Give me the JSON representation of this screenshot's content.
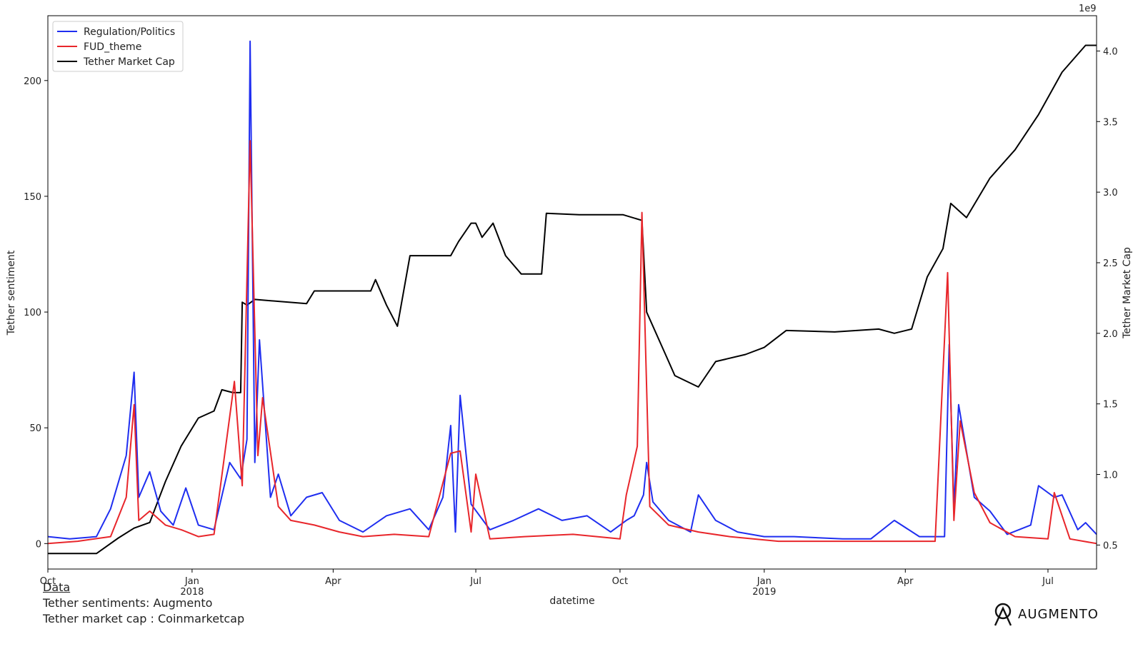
{
  "chart_data": {
    "type": "line",
    "xlabel": "datetime",
    "ylabel_left": "Tether sentiment",
    "ylabel_right": "Tether Market Cap",
    "right_axis_multiplier": "1e9",
    "x_range": [
      "2017-10-01",
      "2019-08-01"
    ],
    "ylim_left": [
      -11,
      228
    ],
    "ylim_right": [
      0.33,
      4.25
    ],
    "x_ticks": [
      {
        "date": "2017-10-01",
        "label": "Oct",
        "sub": ""
      },
      {
        "date": "2018-01-01",
        "label": "Jan",
        "sub": "2018"
      },
      {
        "date": "2018-04-01",
        "label": "Apr",
        "sub": ""
      },
      {
        "date": "2018-07-01",
        "label": "Jul",
        "sub": ""
      },
      {
        "date": "2018-10-01",
        "label": "Oct",
        "sub": ""
      },
      {
        "date": "2019-01-01",
        "label": "Jan",
        "sub": "2019"
      },
      {
        "date": "2019-04-01",
        "label": "Apr",
        "sub": ""
      },
      {
        "date": "2019-07-01",
        "label": "Jul",
        "sub": ""
      }
    ],
    "y_ticks_left": [
      0,
      50,
      100,
      150,
      200
    ],
    "y_ticks_right": [
      "0.5",
      "1.0",
      "1.5",
      "2.0",
      "2.5",
      "3.0",
      "3.5",
      "4.0"
    ],
    "legend_position": "top-left",
    "series": [
      {
        "name": "Regulation/Politics",
        "color": "#1f2ef0",
        "axis": "left",
        "points": [
          [
            "2017-10-01",
            3
          ],
          [
            "2017-10-15",
            2
          ],
          [
            "2017-11-01",
            3
          ],
          [
            "2017-11-10",
            15
          ],
          [
            "2017-11-20",
            38
          ],
          [
            "2017-11-25",
            74
          ],
          [
            "2017-11-28",
            20
          ],
          [
            "2017-12-05",
            31
          ],
          [
            "2017-12-12",
            14
          ],
          [
            "2017-12-20",
            8
          ],
          [
            "2017-12-28",
            24
          ],
          [
            "2018-01-05",
            8
          ],
          [
            "2018-01-15",
            6
          ],
          [
            "2018-01-25",
            35
          ],
          [
            "2018-02-01",
            28
          ],
          [
            "2018-02-05",
            45
          ],
          [
            "2018-02-07",
            217
          ],
          [
            "2018-02-10",
            35
          ],
          [
            "2018-02-13",
            88
          ],
          [
            "2018-02-20",
            20
          ],
          [
            "2018-02-25",
            30
          ],
          [
            "2018-03-05",
            12
          ],
          [
            "2018-03-15",
            20
          ],
          [
            "2018-03-25",
            22
          ],
          [
            "2018-04-05",
            10
          ],
          [
            "2018-04-20",
            5
          ],
          [
            "2018-05-05",
            12
          ],
          [
            "2018-05-20",
            15
          ],
          [
            "2018-06-01",
            6
          ],
          [
            "2018-06-10",
            20
          ],
          [
            "2018-06-15",
            51
          ],
          [
            "2018-06-18",
            5
          ],
          [
            "2018-06-21",
            64
          ],
          [
            "2018-06-28",
            17
          ],
          [
            "2018-07-10",
            6
          ],
          [
            "2018-07-25",
            10
          ],
          [
            "2018-08-10",
            15
          ],
          [
            "2018-08-25",
            10
          ],
          [
            "2018-09-10",
            12
          ],
          [
            "2018-09-25",
            5
          ],
          [
            "2018-10-05",
            10
          ],
          [
            "2018-10-10",
            12
          ],
          [
            "2018-10-16",
            21
          ],
          [
            "2018-10-18",
            35
          ],
          [
            "2018-10-22",
            18
          ],
          [
            "2018-11-01",
            10
          ],
          [
            "2018-11-15",
            5
          ],
          [
            "2018-11-20",
            21
          ],
          [
            "2018-12-01",
            10
          ],
          [
            "2018-12-15",
            5
          ],
          [
            "2019-01-01",
            3
          ],
          [
            "2019-01-20",
            3
          ],
          [
            "2019-02-20",
            2
          ],
          [
            "2019-03-10",
            2
          ],
          [
            "2019-03-25",
            10
          ],
          [
            "2019-04-10",
            3
          ],
          [
            "2019-04-26",
            3
          ],
          [
            "2019-04-29",
            86
          ],
          [
            "2019-05-02",
            15
          ],
          [
            "2019-05-05",
            60
          ],
          [
            "2019-05-15",
            20
          ],
          [
            "2019-05-25",
            14
          ],
          [
            "2019-06-05",
            4
          ],
          [
            "2019-06-20",
            8
          ],
          [
            "2019-06-25",
            25
          ],
          [
            "2019-07-05",
            20
          ],
          [
            "2019-07-10",
            21
          ],
          [
            "2019-07-20",
            6
          ],
          [
            "2019-07-25",
            9
          ],
          [
            "2019-08-01",
            4
          ]
        ]
      },
      {
        "name": "FUD_theme",
        "color": "#e8262b",
        "axis": "left",
        "points": [
          [
            "2017-10-01",
            0
          ],
          [
            "2017-10-20",
            1
          ],
          [
            "2017-11-10",
            3
          ],
          [
            "2017-11-20",
            20
          ],
          [
            "2017-11-25",
            60
          ],
          [
            "2017-11-28",
            10
          ],
          [
            "2017-12-05",
            14
          ],
          [
            "2017-12-15",
            8
          ],
          [
            "2017-12-25",
            6
          ],
          [
            "2018-01-05",
            3
          ],
          [
            "2018-01-15",
            4
          ],
          [
            "2018-01-28",
            70
          ],
          [
            "2018-02-02",
            25
          ],
          [
            "2018-02-07",
            174
          ],
          [
            "2018-02-12",
            38
          ],
          [
            "2018-02-15",
            63
          ],
          [
            "2018-02-25",
            16
          ],
          [
            "2018-03-05",
            10
          ],
          [
            "2018-03-20",
            8
          ],
          [
            "2018-04-05",
            5
          ],
          [
            "2018-04-20",
            3
          ],
          [
            "2018-05-10",
            4
          ],
          [
            "2018-06-01",
            3
          ],
          [
            "2018-06-15",
            39
          ],
          [
            "2018-06-21",
            40
          ],
          [
            "2018-06-28",
            5
          ],
          [
            "2018-07-01",
            30
          ],
          [
            "2018-07-10",
            2
          ],
          [
            "2018-08-01",
            3
          ],
          [
            "2018-09-01",
            4
          ],
          [
            "2018-10-01",
            2
          ],
          [
            "2018-10-05",
            21
          ],
          [
            "2018-10-12",
            42
          ],
          [
            "2018-10-15",
            143
          ],
          [
            "2018-10-20",
            16
          ],
          [
            "2018-11-01",
            8
          ],
          [
            "2018-11-20",
            5
          ],
          [
            "2018-12-10",
            3
          ],
          [
            "2019-01-10",
            1
          ],
          [
            "2019-02-10",
            1
          ],
          [
            "2019-03-10",
            1
          ],
          [
            "2019-04-20",
            1
          ],
          [
            "2019-04-28",
            117
          ],
          [
            "2019-05-02",
            10
          ],
          [
            "2019-05-06",
            53
          ],
          [
            "2019-05-15",
            22
          ],
          [
            "2019-05-25",
            9
          ],
          [
            "2019-06-10",
            3
          ],
          [
            "2019-07-01",
            2
          ],
          [
            "2019-07-05",
            22
          ],
          [
            "2019-07-15",
            2
          ],
          [
            "2019-08-01",
            0
          ]
        ]
      },
      {
        "name": "Tether Market Cap",
        "color": "#000000",
        "axis": "right",
        "points": [
          [
            "2017-10-01",
            0.44
          ],
          [
            "2017-11-01",
            0.44
          ],
          [
            "2017-11-15",
            0.55
          ],
          [
            "2017-11-25",
            0.62
          ],
          [
            "2017-12-05",
            0.66
          ],
          [
            "2017-12-15",
            0.95
          ],
          [
            "2017-12-25",
            1.2
          ],
          [
            "2018-01-05",
            1.4
          ],
          [
            "2018-01-15",
            1.45
          ],
          [
            "2018-01-20",
            1.6
          ],
          [
            "2018-01-27",
            1.58
          ],
          [
            "2018-02-01",
            1.58
          ],
          [
            "2018-02-02",
            2.22
          ],
          [
            "2018-02-05",
            2.2
          ],
          [
            "2018-02-10",
            2.24
          ],
          [
            "2018-03-15",
            2.21
          ],
          [
            "2018-03-20",
            2.3
          ],
          [
            "2018-04-25",
            2.3
          ],
          [
            "2018-04-28",
            2.38
          ],
          [
            "2018-05-05",
            2.2
          ],
          [
            "2018-05-12",
            2.05
          ],
          [
            "2018-05-20",
            2.55
          ],
          [
            "2018-06-15",
            2.55
          ],
          [
            "2018-06-20",
            2.65
          ],
          [
            "2018-06-28",
            2.78
          ],
          [
            "2018-07-01",
            2.78
          ],
          [
            "2018-07-05",
            2.68
          ],
          [
            "2018-07-12",
            2.78
          ],
          [
            "2018-07-20",
            2.55
          ],
          [
            "2018-07-30",
            2.42
          ],
          [
            "2018-08-12",
            2.42
          ],
          [
            "2018-08-15",
            2.85
          ],
          [
            "2018-09-05",
            2.84
          ],
          [
            "2018-09-25",
            2.84
          ],
          [
            "2018-10-03",
            2.84
          ],
          [
            "2018-10-15",
            2.8
          ],
          [
            "2018-10-18",
            2.15
          ],
          [
            "2018-10-30",
            1.85
          ],
          [
            "2018-11-05",
            1.7
          ],
          [
            "2018-11-20",
            1.62
          ],
          [
            "2018-12-01",
            1.8
          ],
          [
            "2018-12-20",
            1.85
          ],
          [
            "2019-01-01",
            1.9
          ],
          [
            "2019-01-15",
            2.02
          ],
          [
            "2019-02-15",
            2.01
          ],
          [
            "2019-03-15",
            2.03
          ],
          [
            "2019-03-25",
            2.0
          ],
          [
            "2019-04-05",
            2.03
          ],
          [
            "2019-04-15",
            2.4
          ],
          [
            "2019-04-25",
            2.6
          ],
          [
            "2019-04-30",
            2.92
          ],
          [
            "2019-05-10",
            2.82
          ],
          [
            "2019-05-25",
            3.1
          ],
          [
            "2019-06-10",
            3.3
          ],
          [
            "2019-06-25",
            3.55
          ],
          [
            "2019-07-10",
            3.85
          ],
          [
            "2019-07-25",
            4.04
          ],
          [
            "2019-08-01",
            4.04
          ]
        ]
      }
    ]
  },
  "footer": {
    "heading": "Data",
    "line1": "Tether sentiments: Augmento",
    "line2": "Tether market cap : Coinmarketcap"
  },
  "brand": {
    "name": "AUGMENTO",
    "icon": "augmento-logo-icon"
  }
}
